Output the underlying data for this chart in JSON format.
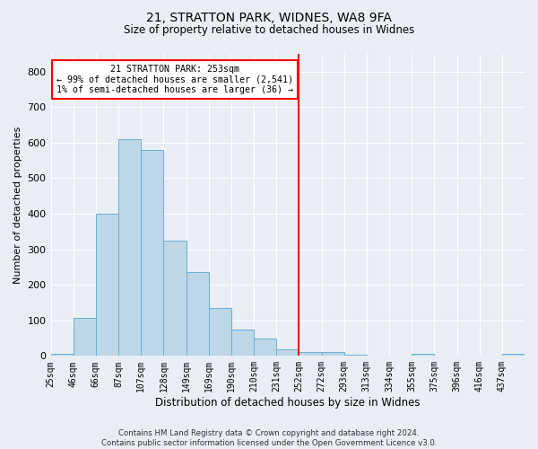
{
  "title1": "21, STRATTON PARK, WIDNES, WA8 9FA",
  "title2": "Size of property relative to detached houses in Widnes",
  "xlabel": "Distribution of detached houses by size in Widnes",
  "ylabel": "Number of detached properties",
  "footer": "Contains HM Land Registry data © Crown copyright and database right 2024.\nContains public sector information licensed under the Open Government Licence v3.0.",
  "bar_labels": [
    "25sqm",
    "46sqm",
    "66sqm",
    "87sqm",
    "107sqm",
    "128sqm",
    "149sqm",
    "169sqm",
    "190sqm",
    "210sqm",
    "231sqm",
    "252sqm",
    "272sqm",
    "293sqm",
    "313sqm",
    "334sqm",
    "355sqm",
    "375sqm",
    "396sqm",
    "416sqm",
    "437sqm"
  ],
  "bar_heights": [
    5,
    107,
    400,
    611,
    580,
    325,
    235,
    135,
    75,
    50,
    18,
    12,
    10,
    4,
    0,
    0,
    5,
    0,
    0,
    0,
    5
  ],
  "bar_color": "#BDD7E7",
  "bar_edge_color": "#6BAED6",
  "vline_color": "red",
  "annotation_title": "21 STRATTON PARK: 253sqm",
  "annotation_line1": "← 99% of detached houses are smaller (2,541)",
  "annotation_line2": "1% of semi-detached houses are larger (36) →",
  "annotation_box_color": "white",
  "annotation_box_edge": "red",
  "ylim": [
    0,
    850
  ],
  "yticks": [
    0,
    100,
    200,
    300,
    400,
    500,
    600,
    700,
    800
  ],
  "background_color": "#e8eef4",
  "grid_color": "white"
}
